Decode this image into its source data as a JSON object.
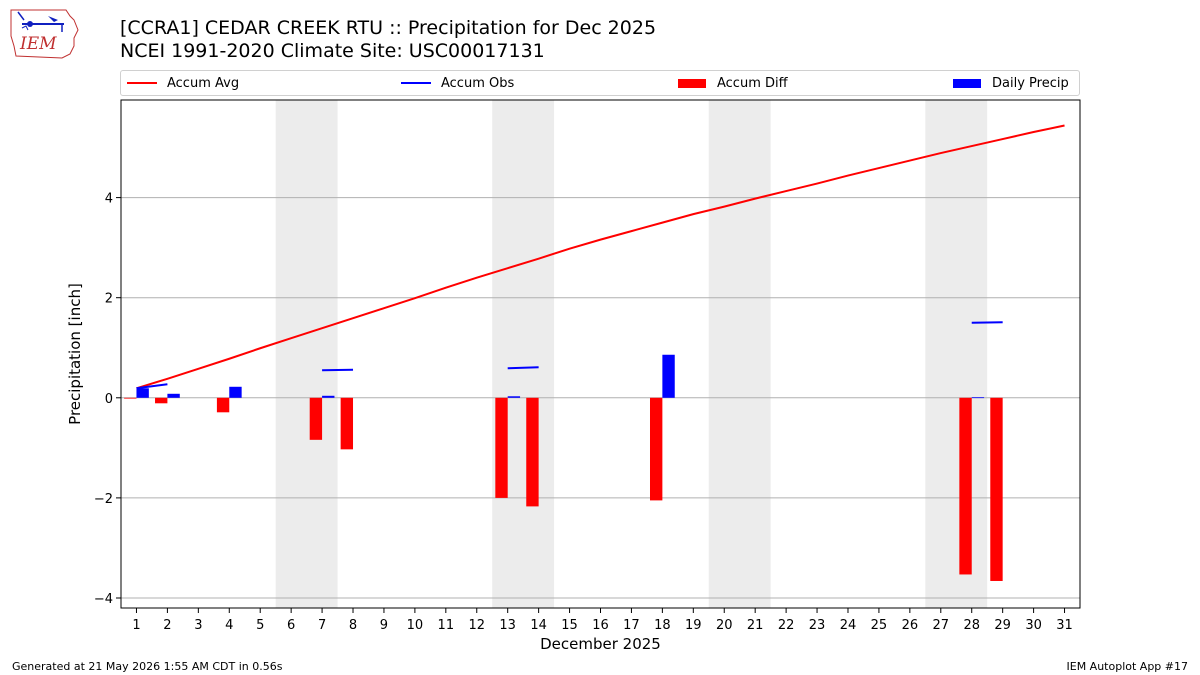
{
  "header": {
    "title_line1": "[CCRA1] CEDAR CREEK RTU :: Precipitation for Dec 2025",
    "title_line2": "NCEI 1991-2020 Climate Site: USC00017131"
  },
  "logo": {
    "text": "IEM"
  },
  "legend": {
    "items": [
      {
        "label": "Accum Avg",
        "kind": "line",
        "color": "#ff0000"
      },
      {
        "label": "Accum Obs",
        "kind": "line",
        "color": "#0000ff"
      },
      {
        "label": "Accum Diff",
        "kind": "box",
        "color": "#ff0000"
      },
      {
        "label": "Daily Precip",
        "kind": "box",
        "color": "#0000ff"
      }
    ]
  },
  "footer": {
    "left": "Generated at 21 May 2026 1:55 AM CDT in 0.56s",
    "right": "IEM Autoplot App #17"
  },
  "chart_data": {
    "type": "bar",
    "xlabel": "December 2025",
    "ylabel": "Precipitation [inch]",
    "ylim": [
      -4.2,
      5.95
    ],
    "yticks": [
      -4,
      -2,
      0,
      2,
      4
    ],
    "grid": "horizontal",
    "legend_position": "top",
    "weekend_shading": [
      [
        6,
        7
      ],
      [
        13,
        14
      ],
      [
        20,
        21
      ],
      [
        27,
        28
      ]
    ],
    "days": [
      1,
      2,
      3,
      4,
      5,
      6,
      7,
      8,
      9,
      10,
      11,
      12,
      13,
      14,
      15,
      16,
      17,
      18,
      19,
      20,
      21,
      22,
      23,
      24,
      25,
      26,
      27,
      28,
      29,
      30,
      31
    ],
    "colors": {
      "avg": "#ff0000",
      "obs": "#0000ff",
      "diff": "#ff0000",
      "daily": "#0000ff",
      "weekend": "#ececec",
      "grid": "#b0b0b0"
    },
    "series": [
      {
        "name": "Accum Avg",
        "type": "line",
        "values": [
          0.19,
          0.38,
          0.58,
          0.78,
          0.99,
          1.19,
          1.39,
          1.59,
          1.79,
          1.99,
          2.2,
          2.4,
          2.59,
          2.78,
          2.98,
          3.16,
          3.33,
          3.5,
          3.67,
          3.82,
          3.98,
          4.13,
          4.28,
          4.44,
          4.59,
          4.74,
          4.89,
          5.03,
          5.17,
          5.31,
          5.44
        ]
      },
      {
        "name": "Accum Obs",
        "type": "step",
        "values": [
          0.19,
          0.27,
          null,
          null,
          null,
          null,
          0.55,
          0.56,
          null,
          null,
          null,
          null,
          0.59,
          0.61,
          null,
          null,
          null,
          null,
          null,
          null,
          null,
          null,
          null,
          null,
          null,
          null,
          null,
          1.5,
          1.51,
          null,
          null
        ]
      },
      {
        "name": "Accum Diff",
        "type": "bar",
        "values": [
          0.0,
          -0.11,
          null,
          -0.29,
          null,
          null,
          -0.84,
          -1.03,
          null,
          null,
          null,
          null,
          -2.0,
          -2.17,
          null,
          null,
          null,
          -2.05,
          null,
          null,
          null,
          null,
          null,
          null,
          null,
          null,
          null,
          -3.53,
          -3.66,
          null,
          null
        ]
      },
      {
        "name": "Daily Precip",
        "type": "bar",
        "values": [
          0.19,
          0.08,
          null,
          0.22,
          null,
          null,
          0.04,
          null,
          null,
          null,
          null,
          null,
          0.03,
          null,
          null,
          null,
          null,
          0.86,
          null,
          null,
          null,
          null,
          null,
          null,
          null,
          null,
          null,
          0.01,
          null,
          null,
          null
        ]
      }
    ]
  }
}
